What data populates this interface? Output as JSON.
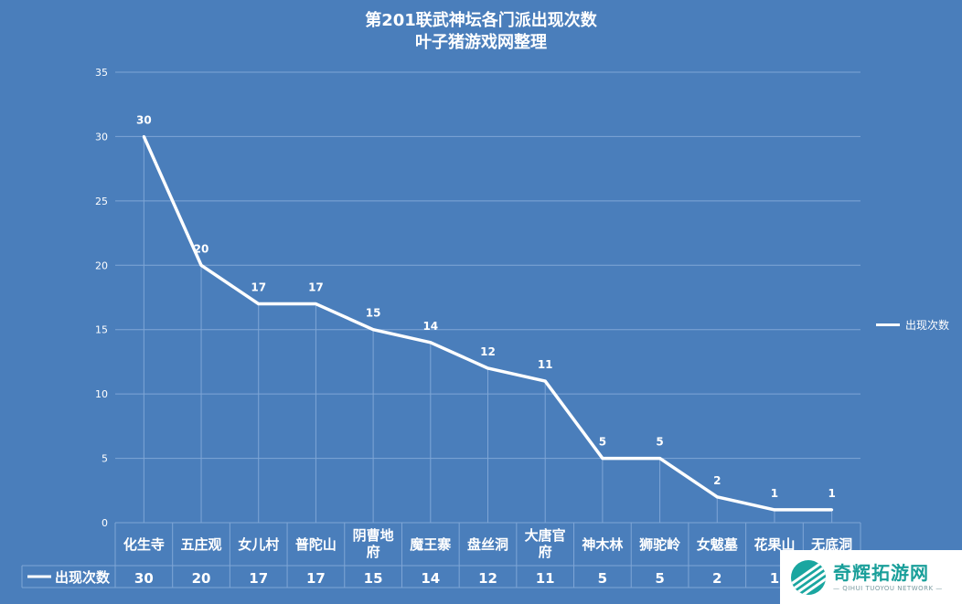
{
  "title": "第201联武神坛各门派出现次数",
  "subtitle": "叶子猪游戏网整理",
  "watermark": {
    "name": "奇辉拓游网",
    "tagline": "— QIHUI TUOYOU NETWORK —"
  },
  "colors": {
    "background": "#4a7ebb",
    "line": "#ffffff",
    "grid": "#7fa6d6"
  },
  "chart_data": {
    "type": "line",
    "title": "第201联武神坛各门派出现次数",
    "subtitle": "叶子猪游戏网整理",
    "categories": [
      "化生寺",
      "五庄观",
      "女儿村",
      "普陀山",
      "阴曹地府",
      "魔王寨",
      "盘丝洞",
      "大唐官府",
      "神木林",
      "狮驼岭",
      "女魃墓",
      "花果山",
      "无底洞"
    ],
    "category_lines": [
      [
        "化生寺"
      ],
      [
        "五庄观"
      ],
      [
        "女儿村"
      ],
      [
        "普陀山"
      ],
      [
        "阴曹地",
        "府"
      ],
      [
        "魔王寨"
      ],
      [
        "盘丝洞"
      ],
      [
        "大唐官",
        "府"
      ],
      [
        "神木林"
      ],
      [
        "狮驼岭"
      ],
      [
        "女魃墓"
      ],
      [
        "花果山"
      ],
      [
        "无底洞"
      ]
    ],
    "series": [
      {
        "name": "出现次数",
        "values": [
          30,
          20,
          17,
          17,
          15,
          14,
          12,
          11,
          5,
          5,
          2,
          1,
          1
        ]
      }
    ],
    "yticks": [
      "0",
      "5",
      "10",
      "15",
      "20",
      "25",
      "30",
      "35"
    ],
    "ylim": [
      0,
      35
    ],
    "ytick_step": 5,
    "grid": true,
    "data_labels": true,
    "legend": "right",
    "data_table": true
  }
}
